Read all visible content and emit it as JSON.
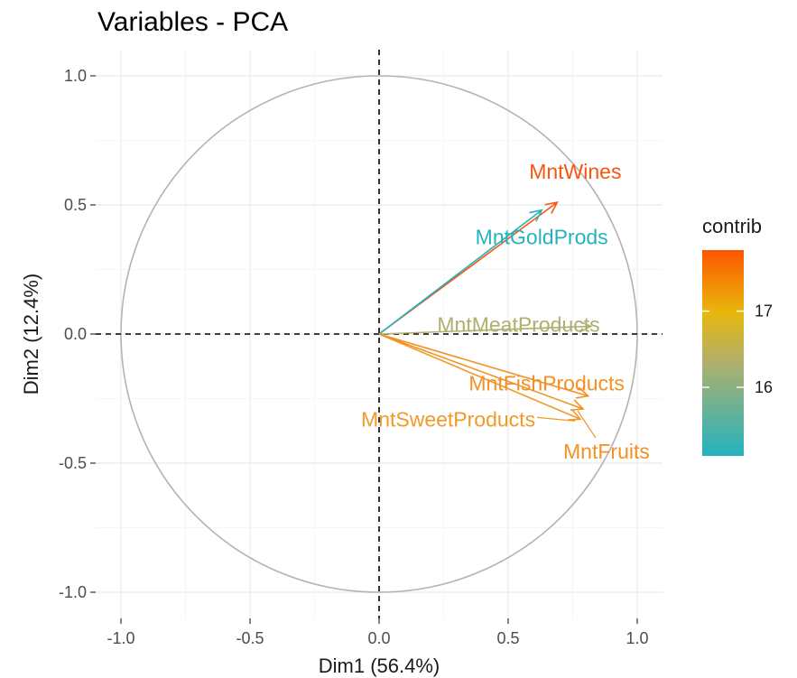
{
  "chart_data": {
    "type": "scatter",
    "subtype": "pca-variable-correlation-circle",
    "title": "Variables - PCA",
    "xlabel": "Dim1 (56.4%)",
    "ylabel": "Dim2 (12.4%)",
    "xlim": [
      -1.1,
      1.1
    ],
    "ylim": [
      -1.1,
      1.1
    ],
    "xticks": [
      -1.0,
      -0.5,
      0.0,
      0.5,
      1.0
    ],
    "yticks": [
      -1.0,
      -0.5,
      0.0,
      0.5,
      1.0
    ],
    "xtick_labels": [
      "-1.0",
      "-0.5",
      "0.0",
      "0.5",
      "1.0"
    ],
    "ytick_labels": [
      "-1.0",
      "-0.5",
      "0.0",
      "0.5",
      "1.0"
    ],
    "grid": true,
    "unit_circle": true,
    "reference_lines": {
      "x": 0,
      "y": 0,
      "style": "dashed"
    },
    "variables": [
      {
        "name": "MntWines",
        "x": 0.69,
        "y": 0.51,
        "contrib": 17.8,
        "color": "#F8560F"
      },
      {
        "name": "MntGoldProds",
        "x": 0.63,
        "y": 0.48,
        "contrib": 15.1,
        "color": "#24B2BE"
      },
      {
        "name": "MntMeatProducts",
        "x": 0.82,
        "y": 0.03,
        "contrib": 16.1,
        "color": "#AFB06E"
      },
      {
        "name": "MntFishProducts",
        "x": 0.81,
        "y": -0.24,
        "contrib": 17.2,
        "color": "#F29124"
      },
      {
        "name": "MntSweetProducts",
        "x": 0.78,
        "y": -0.33,
        "contrib": 17.1,
        "color": "#F09A28"
      },
      {
        "name": "MntFruits",
        "x": 0.79,
        "y": -0.29,
        "contrib": 17.2,
        "color": "#F29124"
      }
    ],
    "legend": {
      "title": "contrib",
      "placement": "right",
      "range": [
        15.1,
        17.8
      ],
      "ticks": [
        16,
        17
      ],
      "tick_labels": [
        "16",
        "17"
      ],
      "gradient": [
        "#24B2BE",
        "#E8B70B",
        "#FF5500"
      ]
    }
  }
}
